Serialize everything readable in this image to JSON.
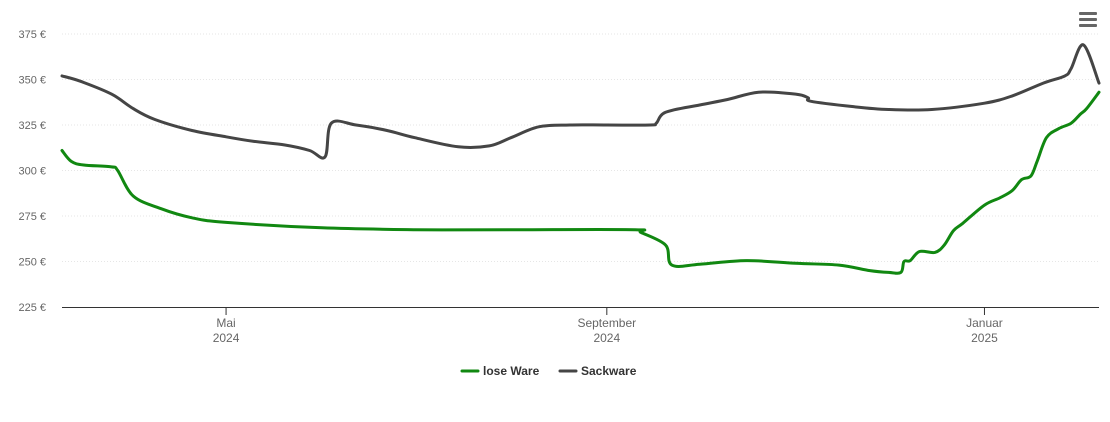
{
  "chart_data": {
    "type": "line",
    "y_ticks": [
      "225 €",
      "250 €",
      "275 €",
      "300 €",
      "325 €",
      "350 €",
      "375 €"
    ],
    "ylim": [
      225,
      375
    ],
    "x_range": [
      "2024-03-09",
      "2025-02-07"
    ],
    "x_ticks": [
      {
        "date": "2024-05-01",
        "label": "Mai",
        "year": "2024"
      },
      {
        "date": "2024-09-01",
        "label": "September",
        "year": "2024"
      },
      {
        "date": "2025-01-01",
        "label": "Januar",
        "year": "2025"
      }
    ],
    "grid": "horizontal",
    "legend_position": "bottom-center",
    "series": [
      {
        "name": "lose Ware",
        "color": "#118811",
        "points": [
          [
            "2024-03-09",
            311
          ],
          [
            "2024-03-12",
            305
          ],
          [
            "2024-03-16",
            303
          ],
          [
            "2024-03-25",
            302
          ],
          [
            "2024-03-27",
            300
          ],
          [
            "2024-04-01",
            286
          ],
          [
            "2024-04-10",
            279
          ],
          [
            "2024-04-20",
            274
          ],
          [
            "2024-05-01",
            271.5
          ],
          [
            "2024-06-01",
            268.5
          ],
          [
            "2024-07-01",
            267.5
          ],
          [
            "2024-08-01",
            267.5
          ],
          [
            "2024-09-10",
            267.5
          ],
          [
            "2024-09-12",
            266
          ],
          [
            "2024-09-20",
            259
          ],
          [
            "2024-09-22",
            248
          ],
          [
            "2024-10-01",
            248.5
          ],
          [
            "2024-10-16",
            250.5
          ],
          [
            "2024-11-01",
            249
          ],
          [
            "2024-11-15",
            248
          ],
          [
            "2024-11-25",
            245
          ],
          [
            "2024-12-01",
            244
          ],
          [
            "2024-12-05",
            244
          ],
          [
            "2024-12-06",
            250
          ],
          [
            "2024-12-08",
            250.5
          ],
          [
            "2024-12-11",
            255.5
          ],
          [
            "2024-12-16",
            255
          ],
          [
            "2024-12-19",
            259
          ],
          [
            "2024-12-22",
            267
          ],
          [
            "2024-12-25",
            271
          ],
          [
            "2025-01-01",
            281
          ],
          [
            "2025-01-06",
            285
          ],
          [
            "2025-01-10",
            289
          ],
          [
            "2025-01-13",
            295
          ],
          [
            "2025-01-16",
            297
          ],
          [
            "2025-01-18",
            305
          ],
          [
            "2025-01-21",
            318
          ],
          [
            "2025-01-25",
            323
          ],
          [
            "2025-01-29",
            326
          ],
          [
            "2025-02-01",
            331
          ],
          [
            "2025-02-03",
            334
          ],
          [
            "2025-02-07",
            343
          ]
        ]
      },
      {
        "name": "Sackware",
        "color": "#454545",
        "points": [
          [
            "2024-03-09",
            352
          ],
          [
            "2024-03-15",
            349
          ],
          [
            "2024-03-25",
            342
          ],
          [
            "2024-04-01",
            334
          ],
          [
            "2024-04-08",
            328
          ],
          [
            "2024-04-20",
            322
          ],
          [
            "2024-05-01",
            318.5
          ],
          [
            "2024-05-10",
            316
          ],
          [
            "2024-05-20",
            314
          ],
          [
            "2024-05-28",
            311
          ],
          [
            "2024-06-02",
            307.5
          ],
          [
            "2024-06-04",
            326
          ],
          [
            "2024-06-12",
            325
          ],
          [
            "2024-06-22",
            322
          ],
          [
            "2024-07-01",
            318
          ],
          [
            "2024-07-15",
            313
          ],
          [
            "2024-07-25",
            313.5
          ],
          [
            "2024-08-01",
            318
          ],
          [
            "2024-08-10",
            324
          ],
          [
            "2024-08-20",
            325
          ],
          [
            "2024-09-01",
            325
          ],
          [
            "2024-09-15",
            325
          ],
          [
            "2024-09-17",
            326
          ],
          [
            "2024-09-20",
            332
          ],
          [
            "2024-10-01",
            336
          ],
          [
            "2024-10-10",
            339
          ],
          [
            "2024-10-20",
            343
          ],
          [
            "2024-11-01",
            342
          ],
          [
            "2024-11-05",
            340
          ],
          [
            "2024-11-06",
            338
          ],
          [
            "2024-11-20",
            335
          ],
          [
            "2024-12-01",
            333.5
          ],
          [
            "2024-12-15",
            333.5
          ],
          [
            "2025-01-01",
            337
          ],
          [
            "2025-01-10",
            341
          ],
          [
            "2025-01-20",
            348
          ],
          [
            "2025-01-27",
            352
          ],
          [
            "2025-01-29",
            356
          ],
          [
            "2025-02-02",
            369
          ],
          [
            "2025-02-07",
            348
          ]
        ]
      }
    ]
  }
}
